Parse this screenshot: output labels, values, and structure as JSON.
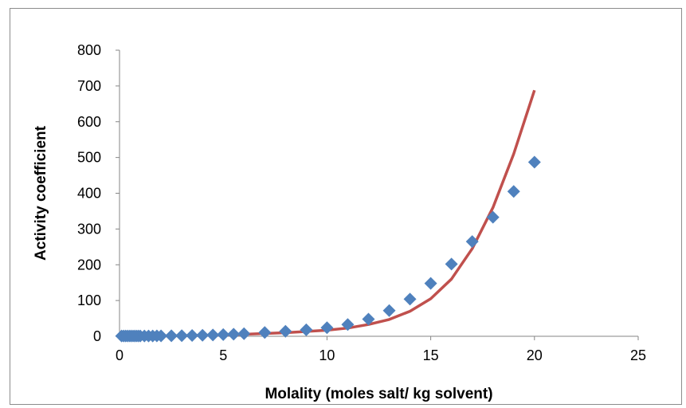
{
  "chart_data": {
    "type": "scatter",
    "title": "",
    "xlabel": "Molality (moles salt/ kg solvent)",
    "ylabel": "Activity coefficient",
    "xlim": [
      0,
      25
    ],
    "ylim": [
      0,
      800
    ],
    "xticks": [
      0,
      5,
      10,
      15,
      20,
      25
    ],
    "yticks": [
      0,
      100,
      200,
      300,
      400,
      500,
      600,
      700,
      800
    ],
    "grid": false,
    "legend": "none",
    "series": [
      {
        "kind": "scatter",
        "marker": "diamond",
        "color": "#4f81bd",
        "x": [
          0.1,
          0.2,
          0.3,
          0.4,
          0.5,
          0.6,
          0.7,
          0.8,
          0.9,
          1.0,
          1.2,
          1.4,
          1.6,
          1.8,
          2.0,
          2.5,
          3,
          3.5,
          4,
          4.5,
          5,
          5.5,
          6,
          7,
          8,
          9,
          10,
          11,
          12,
          13,
          14,
          15,
          16,
          17,
          18,
          19,
          20
        ],
        "y": [
          0.8,
          0.75,
          0.72,
          0.7,
          0.7,
          0.7,
          0.7,
          0.71,
          0.72,
          0.74,
          0.8,
          0.85,
          0.95,
          1.0,
          1.1,
          1.4,
          1.7,
          2.2,
          2.8,
          3.6,
          4.6,
          5.8,
          7.3,
          10.5,
          14,
          18,
          24,
          33,
          48,
          72,
          104,
          148,
          202,
          265,
          333,
          405,
          487
        ]
      },
      {
        "kind": "line",
        "color": "#c0504d",
        "x": [
          0,
          2,
          4,
          6,
          8,
          10,
          11,
          12,
          13,
          14,
          15,
          16,
          17,
          18,
          19,
          20
        ],
        "y": [
          0.8,
          1.1,
          2.5,
          5.5,
          10,
          17,
          23,
          33,
          47,
          70,
          105,
          160,
          245,
          360,
          510,
          688
        ]
      }
    ]
  }
}
